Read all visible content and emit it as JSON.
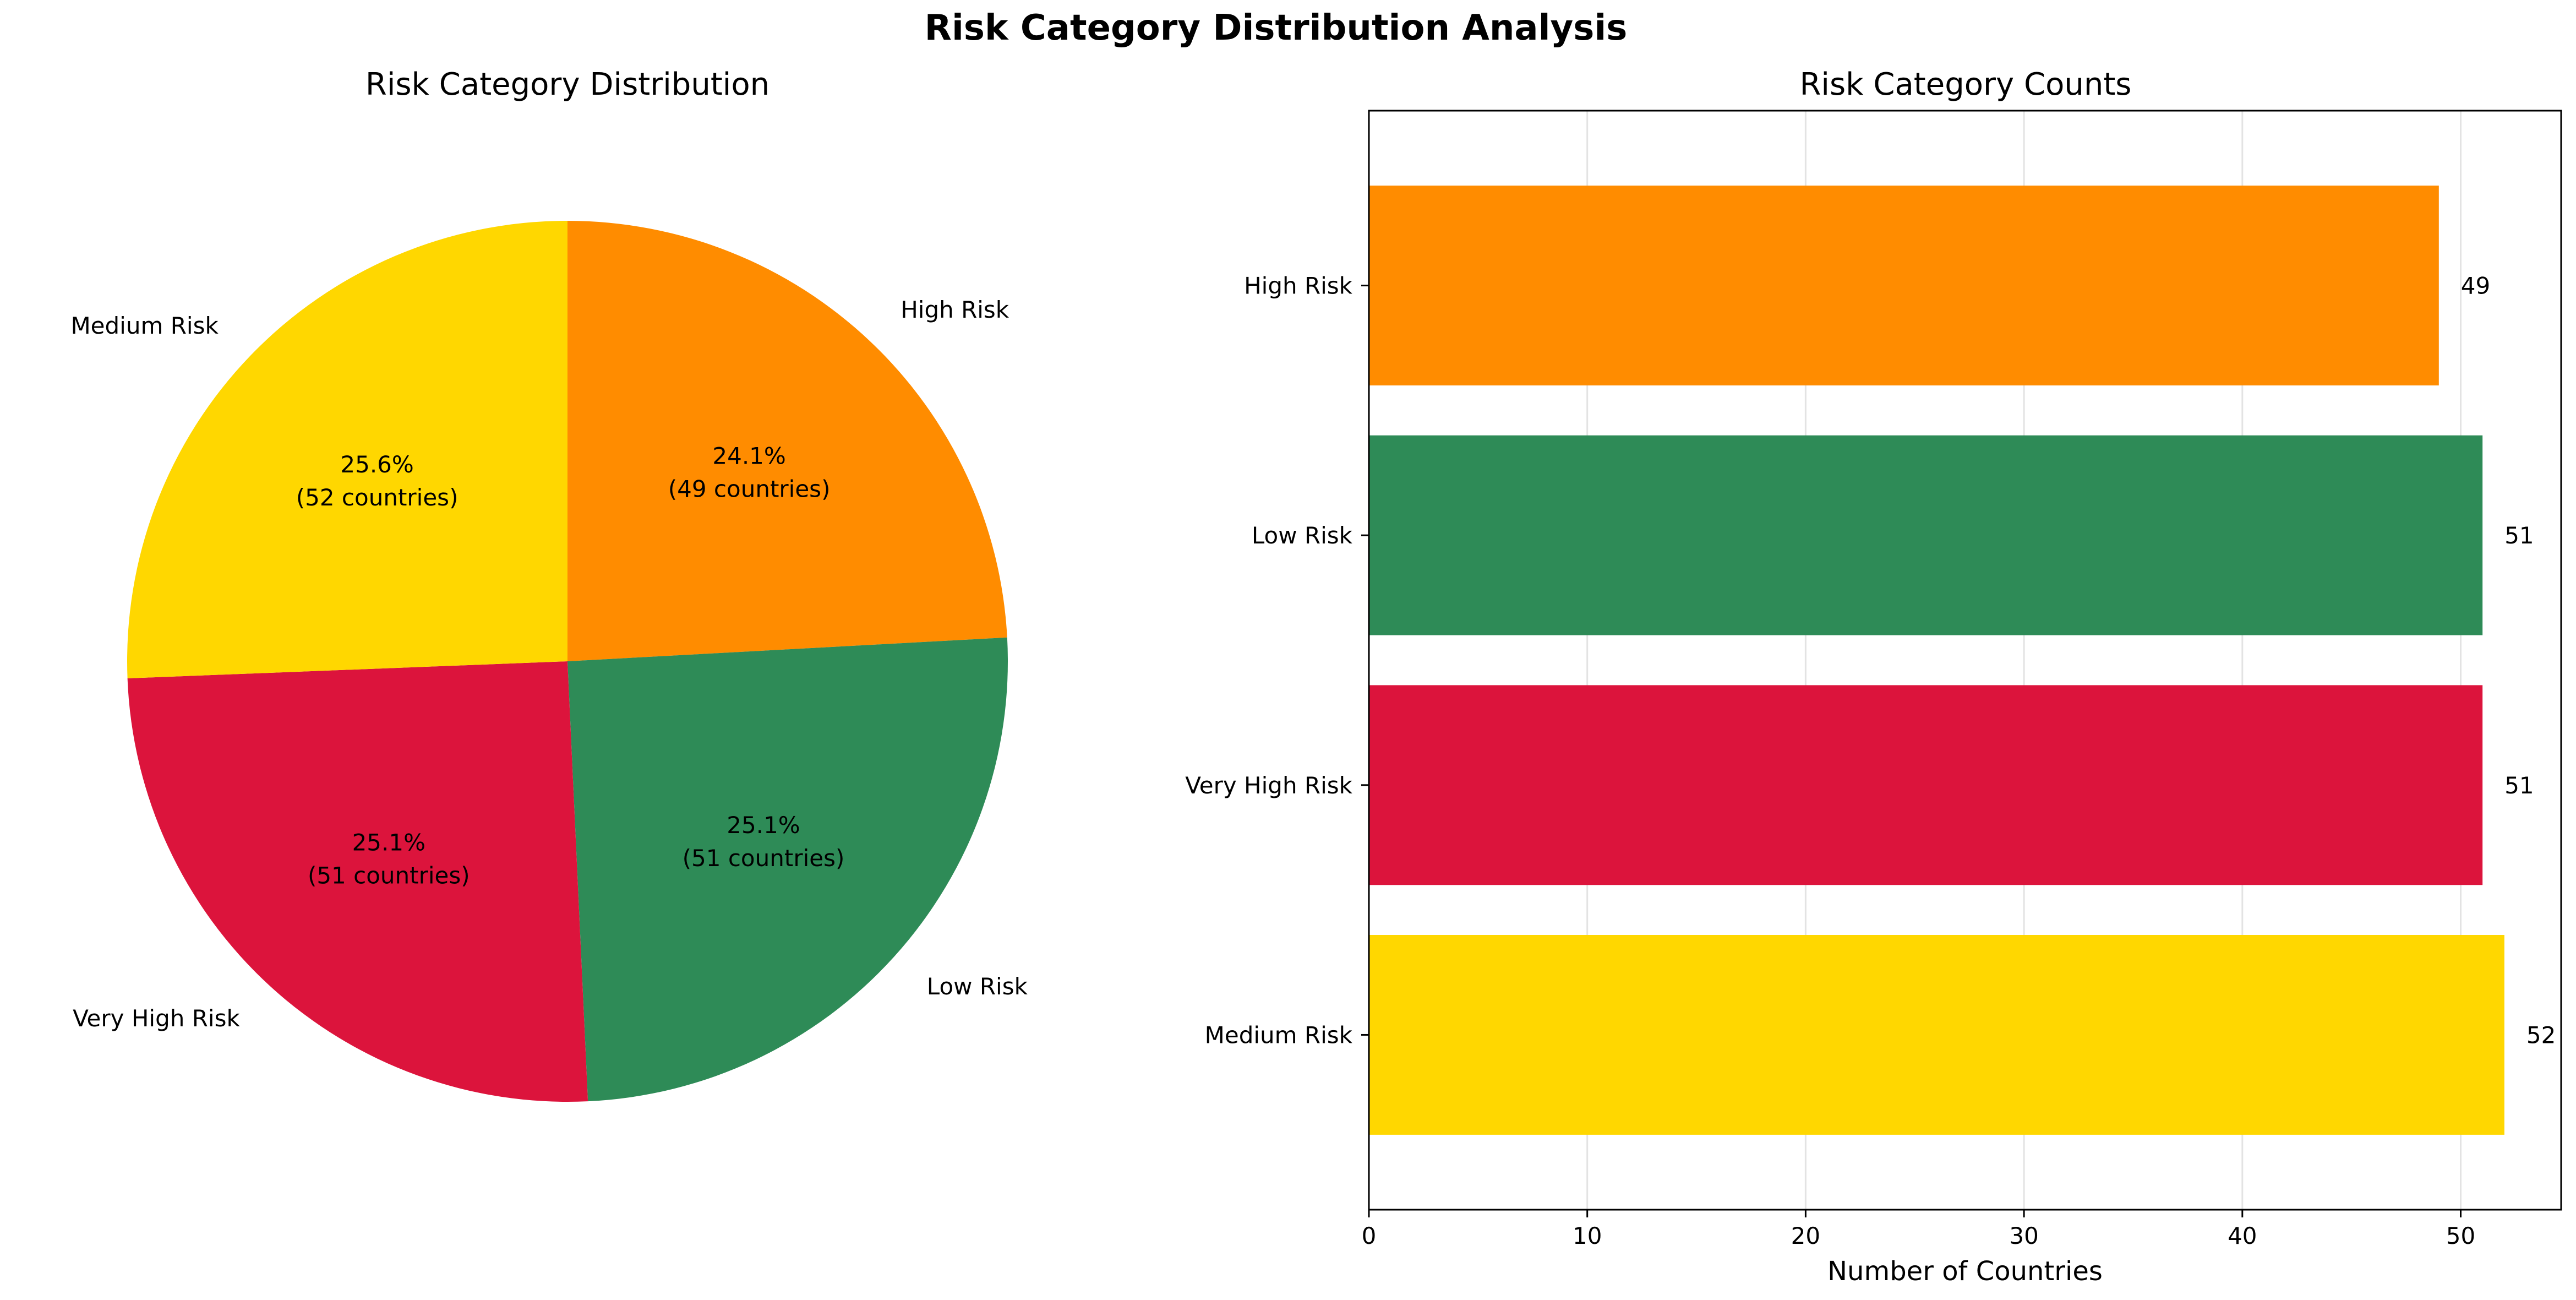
{
  "figure": {
    "suptitle": "Risk Category Distribution Analysis"
  },
  "chart_data": [
    {
      "type": "pie",
      "title": "Risk Category Distribution",
      "labels": [
        "High Risk",
        "Low Risk",
        "Very High Risk",
        "Medium Risk"
      ],
      "values": [
        49,
        51,
        51,
        52
      ],
      "percent_labels": [
        "24.1%",
        "25.1%",
        "25.1%",
        "25.6%"
      ],
      "count_labels": [
        "(49 countries)",
        "(51 countries)",
        "(51 countries)",
        "(52 countries)"
      ],
      "colors": [
        "#FF8C00",
        "#2E8B57",
        "#DC143C",
        "#FFD700"
      ],
      "start_angle": 90,
      "direction": "clockwise"
    },
    {
      "type": "bar",
      "orientation": "horizontal",
      "title": "Risk Category Counts",
      "categories": [
        "Medium Risk",
        "Very High Risk",
        "Low Risk",
        "High Risk"
      ],
      "values": [
        52,
        51,
        51,
        49
      ],
      "colors": [
        "#FFD700",
        "#DC143C",
        "#2E8B57",
        "#FF8C00"
      ],
      "xlabel": "Number of Countries",
      "ylabel": "",
      "xlim": [
        0,
        54.6
      ],
      "xticks": [
        0,
        10,
        20,
        30,
        40,
        50
      ],
      "grid": "x",
      "data_labels": true
    }
  ]
}
